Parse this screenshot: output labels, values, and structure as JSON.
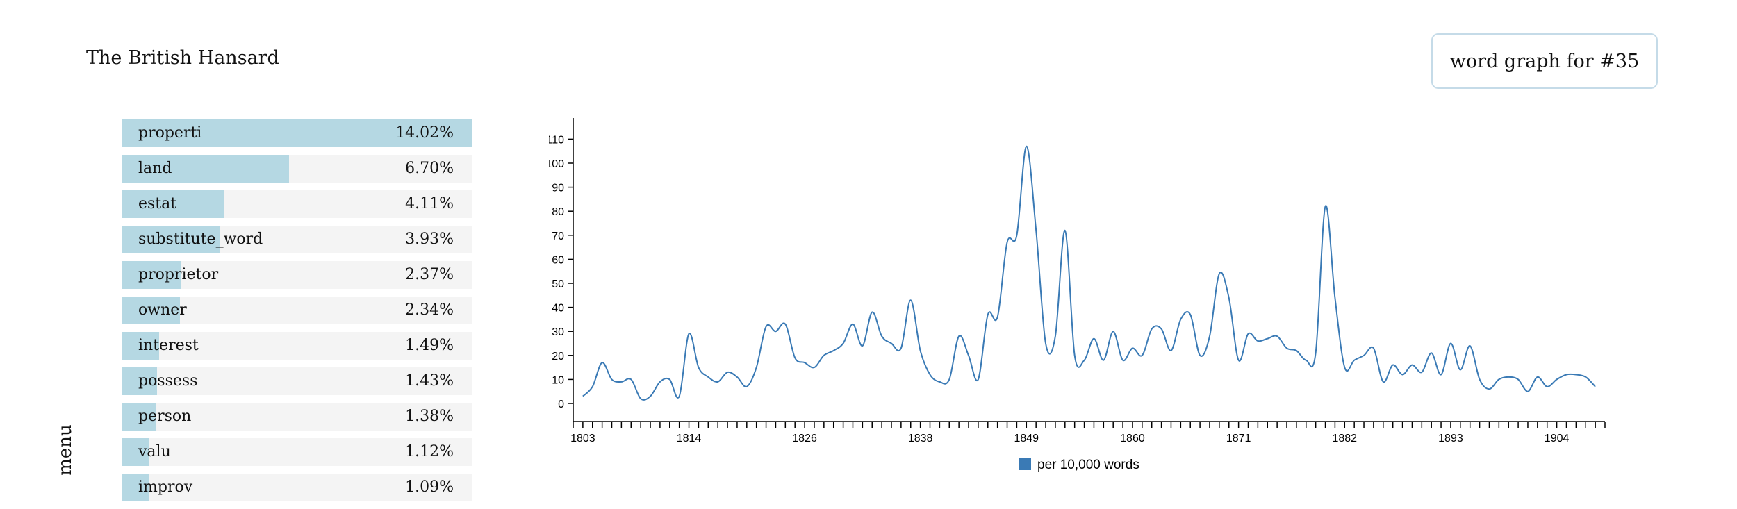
{
  "header": {
    "title": "The British Hansard",
    "graph_button": "word graph for #35"
  },
  "menu": {
    "label": "menu"
  },
  "words": [
    {
      "word": "properti",
      "percent": "14.02%",
      "value": 14.02
    },
    {
      "word": "land",
      "percent": "6.70%",
      "value": 6.7
    },
    {
      "word": "estat",
      "percent": "4.11%",
      "value": 4.11
    },
    {
      "word": "substitute_word",
      "percent": "3.93%",
      "value": 3.93
    },
    {
      "word": "proprietor",
      "percent": "2.37%",
      "value": 2.37
    },
    {
      "word": "owner",
      "percent": "2.34%",
      "value": 2.34
    },
    {
      "word": "interest",
      "percent": "1.49%",
      "value": 1.49
    },
    {
      "word": "possess",
      "percent": "1.43%",
      "value": 1.43
    },
    {
      "word": "person",
      "percent": "1.38%",
      "value": 1.38
    },
    {
      "word": "valu",
      "percent": "1.12%",
      "value": 1.12
    },
    {
      "word": "improv",
      "percent": "1.09%",
      "value": 1.09
    }
  ],
  "colors": {
    "bar_fill": "#b5d8e3",
    "row_bg": "#f4f4f4",
    "line": "#3a7ab5",
    "legend": "#3a7ab5"
  },
  "chart_data": {
    "type": "line",
    "title": "",
    "xlabel": "",
    "ylabel": "",
    "xlim": [
      1802,
      1909
    ],
    "ylim": [
      0,
      115
    ],
    "x_ticks": [
      1803,
      1814,
      1826,
      1838,
      1849,
      1860,
      1871,
      1882,
      1893,
      1904
    ],
    "y_ticks": [
      0,
      10,
      20,
      30,
      40,
      50,
      60,
      70,
      80,
      90,
      100,
      110
    ],
    "legend": "per 10,000 words",
    "series": [
      {
        "name": "per 10,000 words",
        "x": [
          1803,
          1804,
          1805,
          1806,
          1807,
          1808,
          1809,
          1810,
          1811,
          1812,
          1813,
          1814,
          1815,
          1816,
          1817,
          1818,
          1819,
          1820,
          1821,
          1822,
          1823,
          1824,
          1825,
          1826,
          1827,
          1828,
          1829,
          1830,
          1831,
          1832,
          1833,
          1834,
          1835,
          1836,
          1837,
          1838,
          1839,
          1840,
          1841,
          1842,
          1843,
          1844,
          1845,
          1846,
          1847,
          1848,
          1849,
          1850,
          1851,
          1852,
          1853,
          1854,
          1855,
          1856,
          1857,
          1858,
          1859,
          1860,
          1861,
          1862,
          1863,
          1864,
          1865,
          1866,
          1867,
          1868,
          1869,
          1870,
          1871,
          1872,
          1873,
          1874,
          1875,
          1876,
          1877,
          1878,
          1879,
          1880,
          1881,
          1882,
          1883,
          1884,
          1885,
          1886,
          1887,
          1888,
          1889,
          1890,
          1891,
          1892,
          1893,
          1894,
          1895,
          1896,
          1897,
          1898,
          1899,
          1900,
          1901,
          1902,
          1903,
          1904,
          1905,
          1906,
          1907,
          1908
        ],
        "values": [
          3,
          7,
          17,
          10,
          9,
          10,
          2,
          3,
          9,
          10,
          3,
          29,
          15,
          11,
          9,
          13,
          11,
          7,
          15,
          32,
          30,
          33,
          19,
          17,
          15,
          20,
          22,
          25,
          33,
          24,
          38,
          28,
          25,
          23,
          43,
          22,
          12,
          9,
          10,
          28,
          20,
          10,
          37,
          36,
          67,
          70,
          107,
          72,
          25,
          28,
          72,
          20,
          18,
          27,
          18,
          30,
          18,
          23,
          20,
          31,
          31,
          22,
          35,
          37,
          20,
          28,
          54,
          44,
          18,
          29,
          26,
          27,
          28,
          23,
          22,
          18,
          21,
          82,
          44,
          15,
          18,
          20,
          23,
          9,
          16,
          12,
          16,
          13,
          21,
          12,
          25,
          14,
          24,
          10,
          6,
          10,
          11,
          10,
          5,
          11,
          7,
          10,
          12,
          12,
          11,
          7
        ]
      }
    ]
  }
}
